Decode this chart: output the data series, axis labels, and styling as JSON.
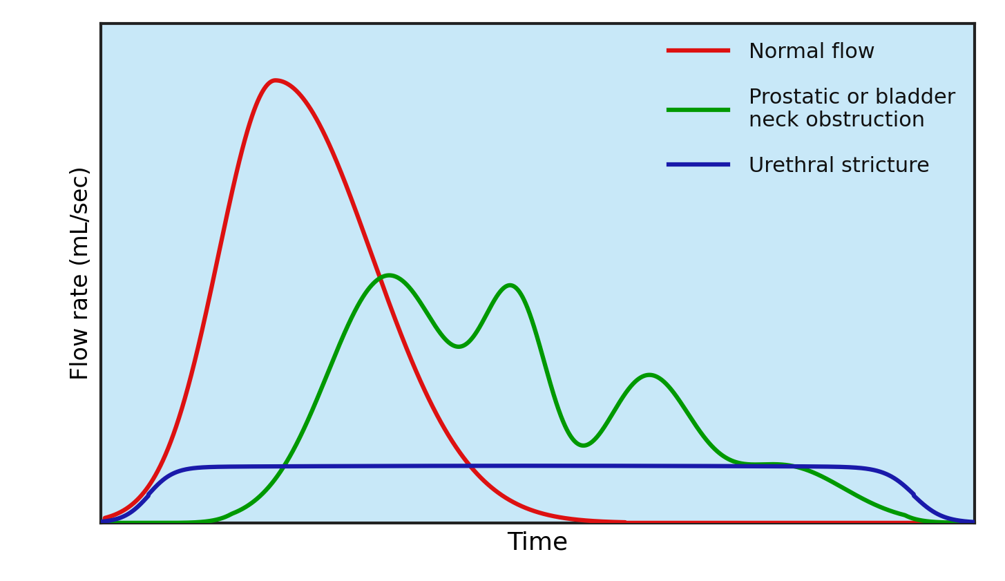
{
  "background_color": "#c8e8f8",
  "figure_facecolor": "#ffffff",
  "border_color": "#222222",
  "xlabel": "Time",
  "ylabel": "Flow rate (mL/sec)",
  "xlabel_fontsize": 26,
  "ylabel_fontsize": 24,
  "legend_entries": [
    "Normal flow",
    "Prostatic or bladder\nneck obstruction",
    "Urethral stricture"
  ],
  "legend_colors": [
    "#dd1111",
    "#009900",
    "#1a1aaa"
  ],
  "line_width": 4.5,
  "xlim": [
    0,
    10
  ],
  "ylim": [
    0,
    1.05
  ]
}
